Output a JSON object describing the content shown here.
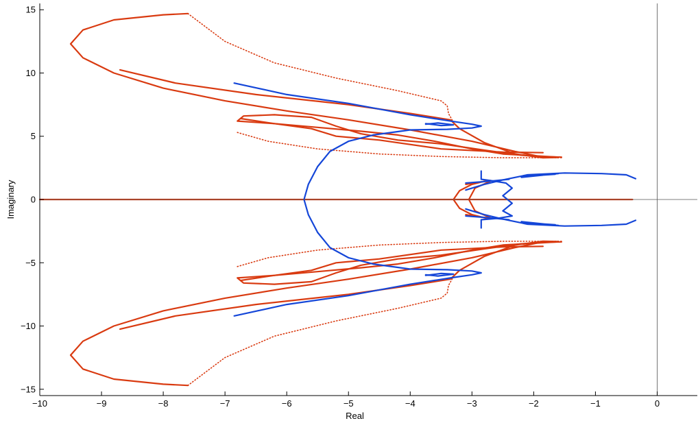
{
  "chart_data": {
    "type": "line",
    "title": "",
    "xlabel": "Real",
    "ylabel": "Imaginary",
    "xlim": [
      -10,
      0.65
    ],
    "ylim": [
      -15.5,
      15.5
    ],
    "grid": false,
    "legend": "none",
    "x_ticks": [
      -10,
      -9,
      -8,
      -7,
      -6,
      -5,
      -4,
      -3,
      -2,
      -1,
      0
    ],
    "y_ticks": [
      -15,
      -10,
      -5,
      0,
      5,
      10,
      15
    ],
    "x_tick_labels": [
      "−10",
      "−9",
      "−8",
      "−7",
      "−6",
      "−5",
      "−4",
      "−3",
      "−2",
      "−1",
      "0"
    ],
    "y_tick_labels": [
      "−15",
      "−10",
      "−5",
      "0",
      "5",
      "10",
      "15"
    ],
    "reference_lines": {
      "x": 0,
      "y": 0
    },
    "colors": {
      "red": "#d93a10",
      "blue": "#1446d8",
      "axes": "#000000"
    },
    "series": [
      {
        "style": "solid",
        "color": "red",
        "points": [
          [
            -7.6,
            14.7
          ],
          [
            -8.0,
            14.6
          ],
          [
            -8.8,
            14.2
          ],
          [
            -9.3,
            13.4
          ],
          [
            -9.5,
            12.3
          ],
          [
            -9.3,
            11.2
          ],
          [
            -8.8,
            10.0
          ],
          [
            -8.0,
            8.8
          ],
          [
            -7.0,
            7.8
          ],
          [
            -6.0,
            7.0
          ],
          [
            -5.0,
            6.3
          ],
          [
            -4.0,
            5.5
          ],
          [
            -3.0,
            4.6
          ],
          [
            -2.3,
            3.8
          ],
          [
            -1.9,
            3.4
          ],
          [
            -1.55,
            3.35
          ]
        ]
      },
      {
        "style": "solid",
        "color": "red",
        "points": [
          [
            -7.6,
            -14.7
          ],
          [
            -8.0,
            -14.6
          ],
          [
            -8.8,
            -14.2
          ],
          [
            -9.3,
            -13.4
          ],
          [
            -9.5,
            -12.3
          ],
          [
            -9.3,
            -11.2
          ],
          [
            -8.8,
            -10.0
          ],
          [
            -8.0,
            -8.8
          ],
          [
            -7.0,
            -7.8
          ],
          [
            -6.0,
            -7.0
          ],
          [
            -5.0,
            -6.3
          ],
          [
            -4.0,
            -5.5
          ],
          [
            -3.0,
            -4.6
          ],
          [
            -2.3,
            -3.8
          ],
          [
            -1.9,
            -3.4
          ],
          [
            -1.55,
            -3.35
          ]
        ]
      },
      {
        "style": "dotted",
        "color": "red",
        "points": [
          [
            -7.6,
            14.7
          ],
          [
            -7.0,
            12.5
          ],
          [
            -6.2,
            10.8
          ],
          [
            -5.2,
            9.6
          ],
          [
            -4.2,
            8.6
          ],
          [
            -3.5,
            7.8
          ],
          [
            -3.4,
            7.4
          ],
          [
            -3.38,
            6.8
          ],
          [
            -3.3,
            6.1
          ],
          [
            -3.2,
            5.6
          ]
        ]
      },
      {
        "style": "dotted",
        "color": "red",
        "points": [
          [
            -7.6,
            -14.7
          ],
          [
            -7.0,
            -12.5
          ],
          [
            -6.2,
            -10.8
          ],
          [
            -5.2,
            -9.6
          ],
          [
            -4.2,
            -8.6
          ],
          [
            -3.5,
            -7.8
          ],
          [
            -3.4,
            -7.4
          ],
          [
            -3.38,
            -6.8
          ],
          [
            -3.3,
            -6.1
          ],
          [
            -3.2,
            -5.6
          ]
        ]
      },
      {
        "style": "dotted",
        "color": "red",
        "points": [
          [
            -6.8,
            5.3
          ],
          [
            -6.3,
            4.6
          ],
          [
            -5.5,
            4.0
          ],
          [
            -4.5,
            3.6
          ],
          [
            -3.5,
            3.4
          ],
          [
            -2.5,
            3.3
          ],
          [
            -1.55,
            3.3
          ]
        ]
      },
      {
        "style": "dotted",
        "color": "red",
        "points": [
          [
            -6.8,
            -5.3
          ],
          [
            -6.3,
            -4.6
          ],
          [
            -5.5,
            -4.0
          ],
          [
            -4.5,
            -3.6
          ],
          [
            -3.5,
            -3.4
          ],
          [
            -2.5,
            -3.3
          ],
          [
            -1.55,
            -3.3
          ]
        ]
      },
      {
        "style": "solid",
        "color": "red",
        "points": [
          [
            -8.7,
            10.25
          ],
          [
            -7.8,
            9.2
          ],
          [
            -6.5,
            8.3
          ],
          [
            -5.0,
            7.5
          ],
          [
            -4.0,
            6.8
          ],
          [
            -3.35,
            6.3
          ],
          [
            -3.2,
            5.6
          ],
          [
            -2.8,
            4.5
          ],
          [
            -2.3,
            3.6
          ],
          [
            -1.85,
            3.3
          ],
          [
            -1.6,
            3.32
          ]
        ]
      },
      {
        "style": "solid",
        "color": "red",
        "points": [
          [
            -8.7,
            -10.25
          ],
          [
            -7.8,
            -9.2
          ],
          [
            -6.5,
            -8.3
          ],
          [
            -5.0,
            -7.5
          ],
          [
            -4.0,
            -6.8
          ],
          [
            -3.35,
            -6.3
          ],
          [
            -3.2,
            -5.6
          ],
          [
            -2.8,
            -4.5
          ],
          [
            -2.3,
            -3.6
          ],
          [
            -1.85,
            -3.3
          ],
          [
            -1.6,
            -3.32
          ]
        ]
      },
      {
        "style": "solid",
        "color": "red",
        "points": [
          [
            -1.85,
            3.7
          ],
          [
            -2.5,
            3.75
          ],
          [
            -3.5,
            4.0
          ],
          [
            -4.5,
            4.7
          ],
          [
            -5.2,
            5.0
          ],
          [
            -5.6,
            5.6
          ],
          [
            -6.2,
            6.0
          ],
          [
            -6.8,
            6.2
          ],
          [
            -6.7,
            6.6
          ],
          [
            -6.2,
            6.7
          ],
          [
            -5.6,
            6.5
          ],
          [
            -5.2,
            5.8
          ],
          [
            -4.8,
            5.2
          ],
          [
            -4.2,
            4.7
          ],
          [
            -3.5,
            4.4
          ],
          [
            -2.8,
            3.9
          ],
          [
            -2.2,
            3.5
          ],
          [
            -1.7,
            3.35
          ]
        ]
      },
      {
        "style": "solid",
        "color": "red",
        "points": [
          [
            -1.85,
            -3.7
          ],
          [
            -2.5,
            -3.75
          ],
          [
            -3.5,
            -4.0
          ],
          [
            -4.5,
            -4.7
          ],
          [
            -5.2,
            -5.0
          ],
          [
            -5.6,
            -5.6
          ],
          [
            -6.2,
            -6.0
          ],
          [
            -6.8,
            -6.2
          ],
          [
            -6.7,
            -6.6
          ],
          [
            -6.2,
            -6.7
          ],
          [
            -5.6,
            -6.5
          ],
          [
            -5.2,
            -5.8
          ],
          [
            -4.8,
            -5.2
          ],
          [
            -4.2,
            -4.7
          ],
          [
            -3.5,
            -4.4
          ],
          [
            -2.8,
            -3.9
          ],
          [
            -2.2,
            -3.5
          ],
          [
            -1.7,
            -3.35
          ]
        ]
      },
      {
        "style": "solid",
        "color": "red",
        "points": [
          [
            -6.75,
            6.4
          ],
          [
            -6.2,
            6.0
          ],
          [
            -5.5,
            5.7
          ],
          [
            -4.8,
            5.4
          ],
          [
            -4.2,
            5.1
          ],
          [
            -3.6,
            4.6
          ],
          [
            -3.0,
            4.0
          ],
          [
            -2.5,
            3.6
          ],
          [
            -1.6,
            3.35
          ]
        ]
      },
      {
        "style": "solid",
        "color": "red",
        "points": [
          [
            -6.75,
            -6.4
          ],
          [
            -6.2,
            -6.0
          ],
          [
            -5.5,
            -5.7
          ],
          [
            -4.8,
            -5.4
          ],
          [
            -4.2,
            -5.1
          ],
          [
            -3.6,
            -4.6
          ],
          [
            -3.0,
            -4.0
          ],
          [
            -2.5,
            -3.6
          ],
          [
            -1.6,
            -3.35
          ]
        ]
      },
      {
        "style": "solid",
        "color": "red",
        "points": [
          [
            -2.75,
            1.5
          ],
          [
            -3.0,
            1.2
          ],
          [
            -3.2,
            0.7
          ],
          [
            -3.3,
            0.0
          ],
          [
            -3.2,
            -0.7
          ],
          [
            -3.0,
            -1.2
          ],
          [
            -2.75,
            -1.5
          ]
        ]
      },
      {
        "style": "solid",
        "color": "red",
        "points": [
          [
            -2.7,
            1.45
          ],
          [
            -2.95,
            0.9
          ],
          [
            -3.05,
            0.0
          ],
          [
            -2.95,
            -0.9
          ],
          [
            -2.7,
            -1.45
          ]
        ]
      },
      {
        "style": "solid",
        "color": "red",
        "points": [
          [
            -3.1,
            1.2
          ],
          [
            -2.9,
            1.35
          ],
          [
            -2.7,
            1.5
          ]
        ]
      },
      {
        "style": "solid",
        "color": "red",
        "points": [
          [
            -3.1,
            -1.2
          ],
          [
            -2.9,
            -1.35
          ],
          [
            -2.7,
            -1.5
          ]
        ]
      },
      {
        "style": "solid",
        "color": "red",
        "points": [
          [
            -10.0,
            0.0
          ],
          [
            -0.4,
            0.0
          ]
        ]
      },
      {
        "style": "solid",
        "color": "blue",
        "points": [
          [
            -6.85,
            9.2
          ],
          [
            -6.0,
            8.3
          ],
          [
            -5.0,
            7.6
          ],
          [
            -4.0,
            6.7
          ],
          [
            -3.35,
            6.2
          ],
          [
            -3.0,
            5.95
          ],
          [
            -2.85,
            5.8
          ],
          [
            -3.0,
            5.65
          ],
          [
            -3.4,
            5.55
          ],
          [
            -4.0,
            5.5
          ],
          [
            -4.6,
            5.1
          ],
          [
            -5.0,
            4.6
          ],
          [
            -5.3,
            3.8
          ],
          [
            -5.5,
            2.6
          ],
          [
            -5.65,
            1.2
          ],
          [
            -5.72,
            0.0
          ],
          [
            -5.65,
            -1.2
          ],
          [
            -5.5,
            -2.6
          ],
          [
            -5.3,
            -3.8
          ],
          [
            -5.0,
            -4.6
          ],
          [
            -4.6,
            -5.1
          ],
          [
            -4.0,
            -5.5
          ],
          [
            -3.4,
            -5.55
          ],
          [
            -3.0,
            -5.65
          ],
          [
            -2.85,
            -5.8
          ],
          [
            -3.0,
            -5.95
          ],
          [
            -3.35,
            -6.2
          ],
          [
            -4.0,
            -6.7
          ],
          [
            -5.0,
            -7.6
          ],
          [
            -6.0,
            -8.3
          ],
          [
            -6.85,
            -9.2
          ]
        ]
      },
      {
        "style": "solid",
        "color": "blue",
        "points": [
          [
            -3.75,
            6.0
          ],
          [
            -3.5,
            5.85
          ],
          [
            -3.3,
            5.9
          ],
          [
            -3.55,
            6.05
          ],
          [
            -3.75,
            5.95
          ]
        ]
      },
      {
        "style": "solid",
        "color": "blue",
        "points": [
          [
            -3.75,
            -6.0
          ],
          [
            -3.5,
            -5.85
          ],
          [
            -3.3,
            -5.9
          ],
          [
            -3.55,
            -6.05
          ],
          [
            -3.75,
            -5.95
          ]
        ]
      },
      {
        "style": "solid",
        "color": "blue",
        "points": [
          [
            -2.85,
            2.25
          ],
          [
            -2.85,
            1.6
          ],
          [
            -2.7,
            1.5
          ],
          [
            -2.45,
            1.3
          ],
          [
            -2.35,
            0.9
          ],
          [
            -2.5,
            0.3
          ],
          [
            -2.35,
            -0.3
          ],
          [
            -2.5,
            -0.9
          ],
          [
            -2.35,
            -1.3
          ],
          [
            -2.6,
            -1.5
          ],
          [
            -2.85,
            -1.6
          ],
          [
            -2.85,
            -2.25
          ]
        ]
      },
      {
        "style": "solid",
        "color": "blue",
        "points": [
          [
            -3.1,
            0.75
          ],
          [
            -2.8,
            1.2
          ],
          [
            -2.5,
            1.55
          ],
          [
            -2.1,
            1.95
          ],
          [
            -1.5,
            2.1
          ],
          [
            -0.9,
            2.05
          ],
          [
            -0.5,
            1.95
          ],
          [
            -0.35,
            1.65
          ]
        ]
      },
      {
        "style": "solid",
        "color": "blue",
        "points": [
          [
            -3.1,
            -0.75
          ],
          [
            -2.8,
            -1.2
          ],
          [
            -2.5,
            -1.55
          ],
          [
            -2.1,
            -1.95
          ],
          [
            -1.5,
            -2.1
          ],
          [
            -0.9,
            -2.05
          ],
          [
            -0.5,
            -1.95
          ],
          [
            -0.35,
            -1.65
          ]
        ]
      },
      {
        "style": "solid",
        "color": "blue",
        "points": [
          [
            -1.65,
            2.0
          ],
          [
            -2.1,
            1.85
          ],
          [
            -2.2,
            1.75
          ],
          [
            -1.9,
            1.9
          ],
          [
            -1.6,
            2.05
          ]
        ]
      },
      {
        "style": "solid",
        "color": "blue",
        "points": [
          [
            -1.65,
            -2.0
          ],
          [
            -2.1,
            -1.85
          ],
          [
            -2.2,
            -1.75
          ],
          [
            -1.9,
            -1.9
          ],
          [
            -1.6,
            -2.05
          ]
        ]
      },
      {
        "style": "solid",
        "color": "blue",
        "points": [
          [
            -3.1,
            1.3
          ],
          [
            -2.7,
            1.45
          ],
          [
            -2.4,
            1.6
          ]
        ]
      },
      {
        "style": "solid",
        "color": "blue",
        "points": [
          [
            -3.1,
            -1.3
          ],
          [
            -2.7,
            -1.45
          ],
          [
            -2.4,
            -1.6
          ]
        ]
      }
    ]
  }
}
